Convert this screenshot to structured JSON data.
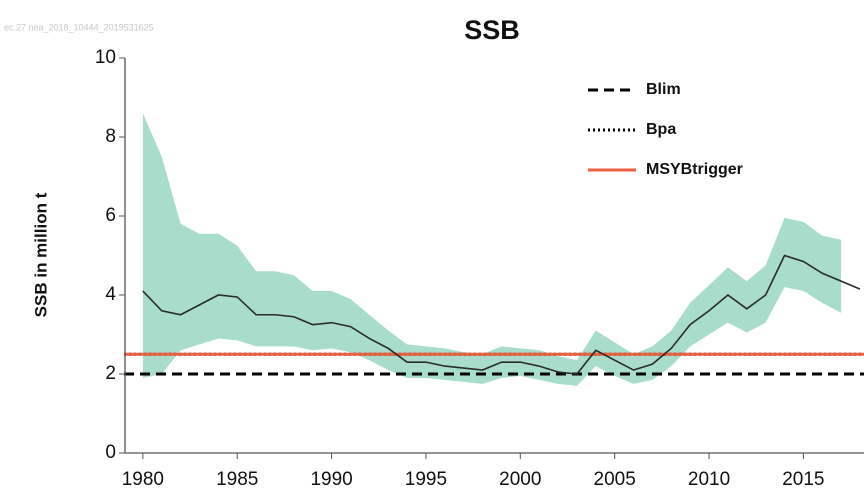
{
  "chart_data": {
    "type": "line",
    "title": "SSB",
    "watermark": "ec.27.nea_2018_10444_2019531625",
    "y_label": "SSB in million t",
    "x": [
      1980,
      1981,
      1982,
      1983,
      1984,
      1985,
      1986,
      1987,
      1988,
      1989,
      1990,
      1991,
      1992,
      1993,
      1994,
      1995,
      1996,
      1997,
      1998,
      1999,
      2000,
      2001,
      2002,
      2003,
      2004,
      2005,
      2006,
      2007,
      2008,
      2009,
      2010,
      2011,
      2012,
      2013,
      2014,
      2015,
      2016,
      2017,
      2018
    ],
    "series": [
      {
        "color": "#2b2b2b",
        "values": [
          4.1,
          3.6,
          3.5,
          3.75,
          4.0,
          3.95,
          3.5,
          3.5,
          3.45,
          3.25,
          3.3,
          3.2,
          2.9,
          2.65,
          2.3,
          2.3,
          2.2,
          2.15,
          2.1,
          2.3,
          2.3,
          2.2,
          2.05,
          2.0,
          2.6,
          2.35,
          2.1,
          2.25,
          2.65,
          3.25,
          3.6,
          4.0,
          3.65,
          4.0,
          5.0,
          4.85,
          4.55,
          4.35,
          4.15
        ]
      }
    ],
    "band": {
      "color": "#a8dccb",
      "lower": [
        1.9,
        2.0,
        2.6,
        2.75,
        2.9,
        2.85,
        2.7,
        2.7,
        2.7,
        2.6,
        2.65,
        2.55,
        2.35,
        2.1,
        1.9,
        1.9,
        1.85,
        1.8,
        1.75,
        1.9,
        1.95,
        1.85,
        1.75,
        1.7,
        2.2,
        1.95,
        1.75,
        1.85,
        2.2,
        2.7,
        3.0,
        3.3,
        3.05,
        3.3,
        4.2,
        4.1,
        3.8,
        3.55,
        null
      ],
      "upper": [
        8.6,
        7.5,
        5.8,
        5.55,
        5.55,
        5.25,
        4.6,
        4.6,
        4.5,
        4.1,
        4.1,
        3.9,
        3.5,
        3.1,
        2.75,
        2.7,
        2.65,
        2.55,
        2.5,
        2.7,
        2.65,
        2.6,
        2.45,
        2.35,
        3.1,
        2.8,
        2.5,
        2.7,
        3.1,
        3.8,
        4.25,
        4.7,
        4.35,
        4.75,
        5.95,
        5.85,
        5.5,
        5.4,
        null
      ]
    },
    "hlines": [
      {
        "name": "Blim",
        "value": 2.0,
        "color": "#000000",
        "style": "dashed"
      },
      {
        "name": "Bpa",
        "value": 2.5,
        "color": "#000000",
        "style": "dotted"
      },
      {
        "name": "MSYBtrigger",
        "value": 2.5,
        "color": "#e8603c",
        "style": "solid"
      }
    ],
    "xlim": [
      1979,
      2018
    ],
    "ylim": [
      0,
      10
    ],
    "xticks": [
      1980,
      1985,
      1990,
      1995,
      2000,
      2005,
      2010,
      2015
    ],
    "yticks": [
      0,
      2,
      4,
      6,
      8,
      10
    ],
    "legend": "upper right"
  }
}
